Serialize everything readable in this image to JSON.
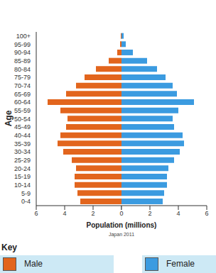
{
  "chart_data": {
    "type": "bar",
    "orientation": "horizontal",
    "subtitle": "Japan 2011",
    "x_label": "Population (millions)",
    "y_label": "Age",
    "categories": [
      "0-4",
      "5-9",
      "10-14",
      "15-19",
      "20-24",
      "25-29",
      "30-34",
      "35-39",
      "40-44",
      "45-49",
      "50-54",
      "55-59",
      "60-64",
      "65-69",
      "70-74",
      "75-79",
      "80-84",
      "85-89",
      "90-94",
      "95-99",
      "100+"
    ],
    "series": [
      {
        "name": "Male",
        "color": "#e2651d",
        "values": [
          2.9,
          3.1,
          3.3,
          3.3,
          3.2,
          3.5,
          4.1,
          4.5,
          4.3,
          3.9,
          3.8,
          4.3,
          5.2,
          3.9,
          3.2,
          2.6,
          1.8,
          0.9,
          0.3,
          0.1,
          0.05
        ]
      },
      {
        "name": "Female",
        "color": "#3b9be0",
        "values": [
          2.9,
          3.0,
          3.2,
          3.2,
          3.3,
          3.7,
          4.1,
          4.4,
          4.3,
          3.7,
          3.6,
          4.0,
          5.1,
          3.9,
          3.6,
          3.1,
          2.5,
          1.8,
          0.8,
          0.3,
          0.15
        ]
      }
    ],
    "xlim": [
      0,
      6
    ],
    "xticks": [
      0,
      2,
      4,
      6
    ],
    "grid": false,
    "legend": "bottom",
    "legend_title": "Key"
  }
}
